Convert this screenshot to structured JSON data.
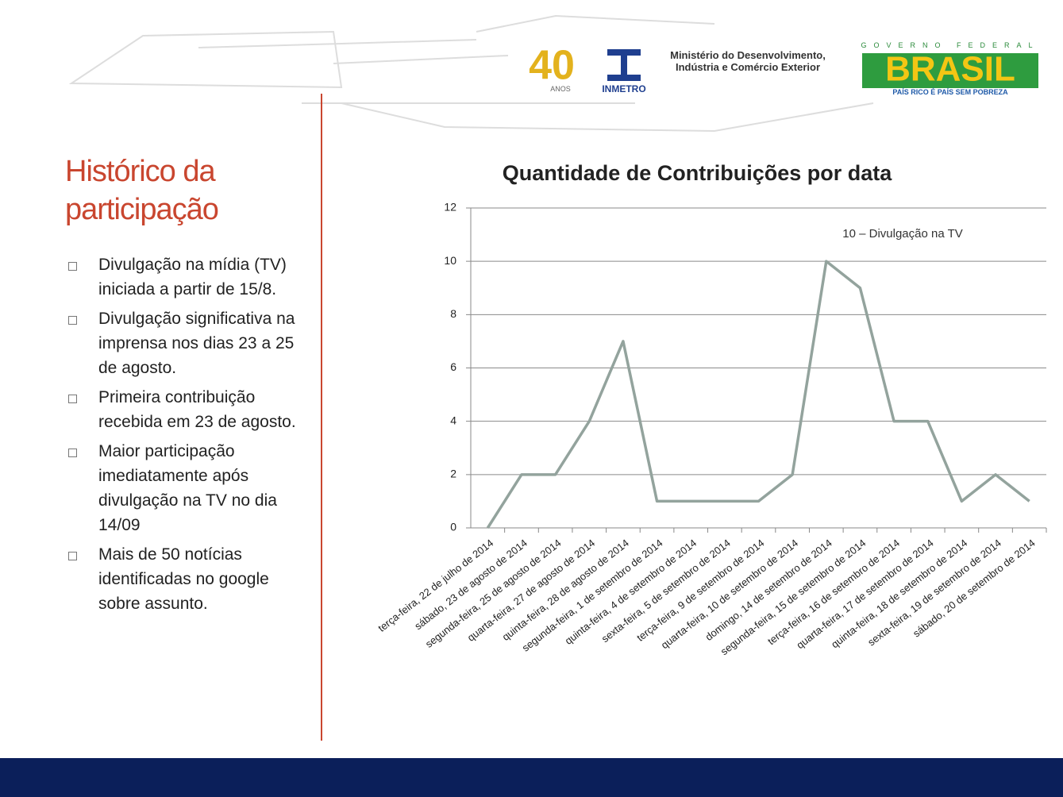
{
  "header": {
    "anniversary": "40",
    "anniversary_sub": "ANOS",
    "institute": "INMETRO",
    "ministry": "Ministério do Desenvolvimento, Indústria e Comércio Exterior",
    "gov_top": "GOVERNO FEDERAL",
    "gov_name": "BRASIL",
    "gov_slogan": "PAÍS RICO É PAÍS SEM POBREZA"
  },
  "sidebar": {
    "title": "Histórico da participação",
    "bullets": [
      "Divulgação na mídia (TV) iniciada a partir de 15/8.",
      "Divulgação significativa na imprensa nos dias 23 a 25 de agosto.",
      "Primeira contribuição recebida em 23 de agosto.",
      "Maior participação imediatamente após divulgação na TV no dia 14/09",
      "Mais de 50 notícias identificadas no google sobre assunto."
    ]
  },
  "chart_data": {
    "type": "line",
    "title": "Quantidade de Contribuições por data",
    "categories": [
      "terça-feira, 22 de julho de 2014",
      "sábado, 23 de agosto de 2014",
      "segunda-feira, 25 de agosto de 2014",
      "quarta-feira, 27 de agosto de 2014",
      "quinta-feira, 28 de agosto de 2014",
      "segunda-feira, 1 de setembro de 2014",
      "quinta-feira, 4 de setembro de 2014",
      "sexta-feira, 5 de setembro de 2014",
      "terça-feira, 9 de setembro de 2014",
      "quarta-feira, 10 de setembro de 2014",
      "domingo, 14 de setembro de 2014",
      "segunda-feira, 15 de setembro de 2014",
      "terça-feira, 16 de setembro de 2014",
      "quarta-feira, 17 de setembro de 2014",
      "quinta-feira, 18 de setembro de 2014",
      "sexta-feira, 19 de setembro de 2014",
      "sábado, 20 de setembro de 2014"
    ],
    "values": [
      0,
      2,
      2,
      4,
      7,
      1,
      1,
      1,
      1,
      2,
      10,
      9,
      4,
      4,
      1,
      2,
      1
    ],
    "color": "#93a39d",
    "ylim": [
      0,
      12
    ],
    "yticks": [
      0,
      2,
      4,
      6,
      8,
      10,
      12
    ],
    "grid": true,
    "annotation": "10 – Divulgação na TV"
  }
}
